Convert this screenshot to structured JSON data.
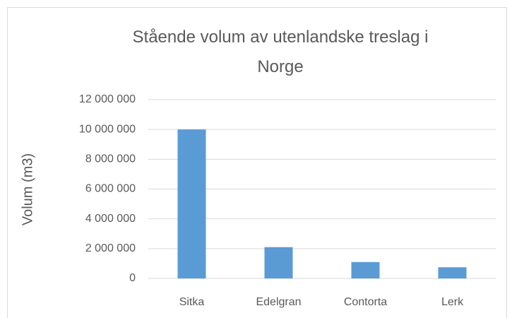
{
  "chart_data": {
    "type": "bar",
    "title": "Stående volum av utenlandske treslag i Norge",
    "y_label": "Volum (m3)",
    "categories": [
      "Sitka",
      "Edelgran",
      "Contorta",
      "Lerk"
    ],
    "values": [
      10000000,
      2100000,
      1100000,
      750000
    ],
    "color": "#5b9bd5",
    "ylim": [
      0,
      12000000
    ],
    "yticks": [
      0,
      {
        "value": 2000000,
        "label": "2 000 000"
      },
      {
        "value": 4000000,
        "label": "4 000 000"
      },
      {
        "value": 6000000,
        "label": "6 000 000"
      },
      {
        "value": 8000000,
        "label": "8 000 000"
      },
      {
        "value": 10000000,
        "label": "10 000 000"
      },
      {
        "value": 12000000,
        "label": "12 000 000"
      }
    ],
    "grid": true
  }
}
